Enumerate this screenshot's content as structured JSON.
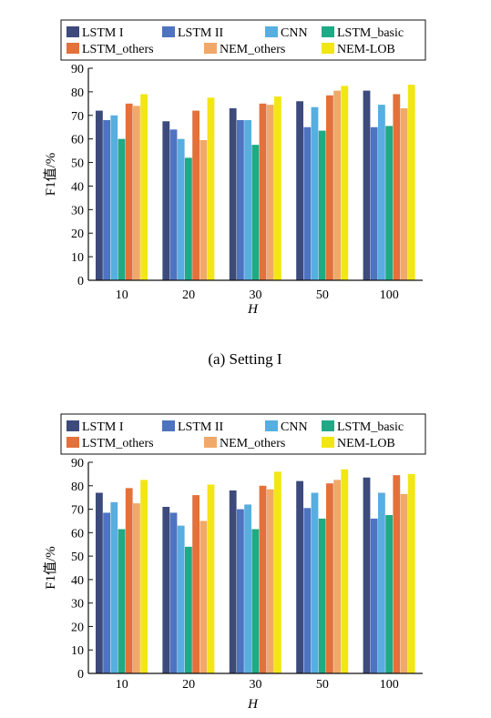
{
  "caption_a": "(a) Setting I",
  "chart_data": [
    {
      "type": "bar",
      "categories": [
        "10",
        "20",
        "30",
        "50",
        "100"
      ],
      "xlabel": "H",
      "ylabel": "F1值/%",
      "ylim": [
        0,
        90
      ],
      "yticks": [
        0,
        10,
        20,
        30,
        40,
        50,
        60,
        70,
        80,
        90
      ],
      "legend": "top",
      "series": [
        {
          "name": "LSTM I",
          "color": "#3c4a7c",
          "values": [
            72,
            67.5,
            73,
            76,
            80.5
          ]
        },
        {
          "name": "LSTM II",
          "color": "#4e73c0",
          "values": [
            68,
            64,
            68,
            65,
            65
          ]
        },
        {
          "name": "CNN",
          "color": "#58aee0",
          "values": [
            70,
            60,
            68,
            73.5,
            74.5
          ]
        },
        {
          "name": "LSTM_basic",
          "color": "#1faa86",
          "values": [
            60,
            52,
            57.5,
            63.5,
            65.5
          ]
        },
        {
          "name": "LSTM_others",
          "color": "#e4703a",
          "values": [
            75,
            72,
            75,
            78.5,
            79
          ]
        },
        {
          "name": "NEM_others",
          "color": "#f0a96a",
          "values": [
            74,
            59.5,
            74.5,
            80.5,
            73
          ]
        },
        {
          "name": "NEM-LOB",
          "color": "#f2e615",
          "values": [
            79,
            77.5,
            78,
            82.5,
            83
          ]
        }
      ]
    },
    {
      "type": "bar",
      "categories": [
        "10",
        "20",
        "30",
        "50",
        "100"
      ],
      "xlabel": "H",
      "ylabel": "F1值/%",
      "ylim": [
        0,
        90
      ],
      "yticks": [
        0,
        10,
        20,
        30,
        40,
        50,
        60,
        70,
        80,
        90
      ],
      "legend": "top",
      "series": [
        {
          "name": "LSTM I",
          "color": "#3c4a7c",
          "values": [
            77,
            71,
            78,
            82,
            83.5
          ]
        },
        {
          "name": "LSTM II",
          "color": "#4e73c0",
          "values": [
            68.5,
            68.5,
            70,
            70.5,
            66
          ]
        },
        {
          "name": "CNN",
          "color": "#58aee0",
          "values": [
            73,
            63,
            72,
            77,
            77
          ]
        },
        {
          "name": "LSTM_basic",
          "color": "#1faa86",
          "values": [
            61.5,
            54,
            61.5,
            66,
            67.5
          ]
        },
        {
          "name": "LSTM_others",
          "color": "#e4703a",
          "values": [
            79,
            76,
            80,
            81,
            84.5
          ]
        },
        {
          "name": "NEM_others",
          "color": "#f0a96a",
          "values": [
            72.5,
            65,
            78.5,
            82.5,
            76.5
          ]
        },
        {
          "name": "NEM-LOB",
          "color": "#f2e615",
          "values": [
            82.5,
            80.5,
            86,
            87,
            85
          ]
        }
      ]
    }
  ]
}
